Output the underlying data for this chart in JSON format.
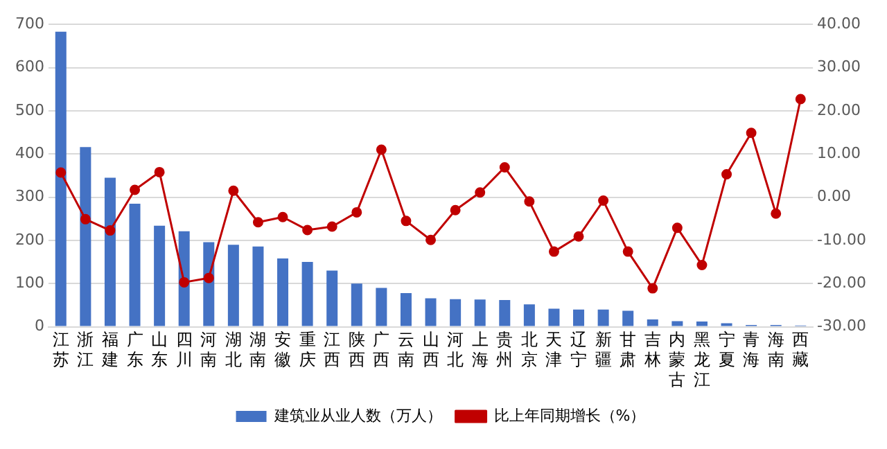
{
  "chart_data": {
    "type": "bar",
    "categories": [
      "江苏",
      "浙江",
      "福建",
      "广东",
      "山东",
      "四川",
      "河南",
      "湖北",
      "湖南",
      "安徽",
      "重庆",
      "江西",
      "陕西",
      "广西",
      "云南",
      "山西",
      "河北",
      "上海",
      "贵州",
      "北京",
      "天津",
      "辽宁",
      "新疆",
      "甘肃",
      "吉林",
      "内蒙古",
      "黑龙江",
      "宁夏",
      "青海",
      "海南",
      "西藏"
    ],
    "series": [
      {
        "name": "建筑业从业人数（万人）",
        "color": "#4472c4",
        "values": [
          683,
          416,
          345,
          285,
          234,
          221,
          196,
          190,
          186,
          158,
          150,
          130,
          100,
          90,
          78,
          66,
          64,
          63,
          62,
          52,
          42,
          40,
          40,
          37,
          17,
          13,
          12,
          8,
          4,
          4,
          3
        ]
      },
      {
        "name": "比上年同期增长（%）",
        "type": "line",
        "axis": "y2",
        "color": "#c00000",
        "marker": "circle",
        "values": [
          5.7,
          -5.1,
          -7.7,
          1.7,
          5.8,
          -19.7,
          -18.7,
          1.5,
          -5.8,
          -4.6,
          -7.6,
          -6.8,
          -3.5,
          11.0,
          -5.5,
          -9.9,
          -3.0,
          1.1,
          6.9,
          -1.0,
          -12.6,
          -9.1,
          -0.8,
          -12.6,
          -21.1,
          -7.1,
          -15.7,
          5.3,
          14.9,
          -3.8,
          22.7
        ]
      }
    ],
    "ylim": [
      0,
      700
    ],
    "yticks": [
      0,
      100,
      200,
      300,
      400,
      500,
      600,
      700
    ],
    "y2lim": [
      -30,
      40
    ],
    "y2ticks": [
      {
        "value": -30,
        "label": "-30.00"
      },
      {
        "value": -20,
        "label": "-20.00"
      },
      {
        "value": -10,
        "label": "-10.00"
      },
      {
        "value": 0,
        "label": "0.00"
      },
      {
        "value": 10,
        "label": "10.00"
      },
      {
        "value": 20,
        "label": "20.00"
      },
      {
        "value": 30,
        "label": "30.00"
      },
      {
        "value": 40,
        "label": "40.00"
      }
    ],
    "grid": "y",
    "legend": "bottom"
  }
}
